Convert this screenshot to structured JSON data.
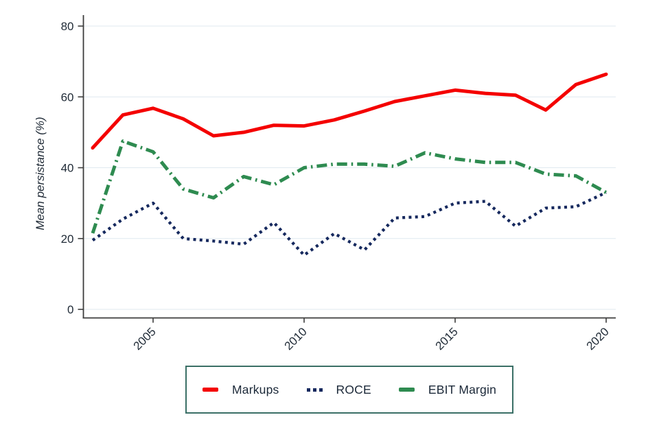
{
  "chart_data": {
    "type": "line",
    "title": "",
    "xlabel": "",
    "ylabel": "Mean persistance (%)",
    "x": [
      2003,
      2004,
      2005,
      2006,
      2007,
      2008,
      2009,
      2010,
      2011,
      2012,
      2013,
      2014,
      2015,
      2016,
      2017,
      2018,
      2019,
      2020
    ],
    "x_tick_years": [
      2005,
      2010,
      2015,
      2020
    ],
    "x_tick_labels": [
      "2005",
      "2010",
      "2015",
      "2020"
    ],
    "y_ticks": [
      0,
      20,
      40,
      60,
      80
    ],
    "y_tick_labels": [
      "0",
      "20",
      "40",
      "60",
      "80"
    ],
    "ylim": [
      0,
      80
    ],
    "xlim": [
      2003,
      2020
    ],
    "grid": "horizontal",
    "legend_position": "bottom-center",
    "series": [
      {
        "name": "Markups",
        "style": "solid",
        "color": "#f40000",
        "values": [
          45.6,
          54.9,
          56.8,
          53.8,
          49.0,
          50.0,
          52.0,
          51.8,
          53.5,
          56.0,
          58.7,
          60.3,
          61.9,
          61.0,
          60.5,
          56.3,
          63.5,
          66.4
        ]
      },
      {
        "name": "ROCE",
        "style": "dotted",
        "color": "#16295e",
        "values": [
          19.5,
          25.5,
          30.0,
          20.0,
          19.3,
          18.4,
          24.5,
          15.3,
          21.4,
          16.8,
          25.8,
          26.2,
          30.0,
          30.5,
          23.5,
          28.6,
          29.0,
          33.0
        ]
      },
      {
        "name": "EBIT Margin",
        "style": "dash-dot",
        "color": "#2e8b50",
        "values": [
          21.5,
          47.5,
          44.5,
          34.0,
          31.5,
          37.5,
          35.2,
          40.0,
          41.0,
          41.0,
          40.4,
          44.2,
          42.5,
          41.5,
          41.5,
          38.2,
          37.7,
          33.0
        ]
      }
    ]
  },
  "axes": {
    "y_title": "Mean persistance (%)",
    "axis_color": "#3c3c3c",
    "grid_color": "#dfe9ef",
    "tick_label_color": "#1f2a36"
  },
  "legend": {
    "border_color": "#3a6f66",
    "items": [
      {
        "label": "Markups",
        "swatch": "red-dash"
      },
      {
        "label": "ROCE",
        "swatch": "navy-dots"
      },
      {
        "label": "EBIT Margin",
        "swatch": "green-dash"
      }
    ]
  }
}
